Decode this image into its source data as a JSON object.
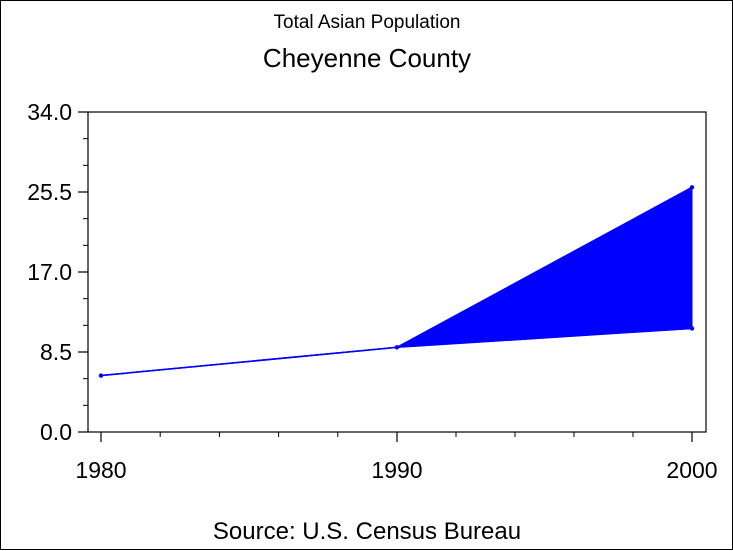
{
  "chart_data": {
    "type": "area",
    "title": "Total Asian Population",
    "subtitle": "Cheyenne County",
    "footnote": "Source: U.S. Census Bureau",
    "x": [
      "1980",
      "1990",
      "2000"
    ],
    "y_ticks": [
      "0.0",
      "8.5",
      "17.0",
      "25.5",
      "34.0"
    ],
    "ylim": [
      0,
      34
    ],
    "series": [
      {
        "values": [
          6,
          9,
          11
        ]
      },
      {
        "values": [
          6,
          9,
          26
        ]
      }
    ],
    "colors": {
      "fill": "#0000ff",
      "line": "#0000ff",
      "axis": "#000000"
    },
    "grid": false
  }
}
